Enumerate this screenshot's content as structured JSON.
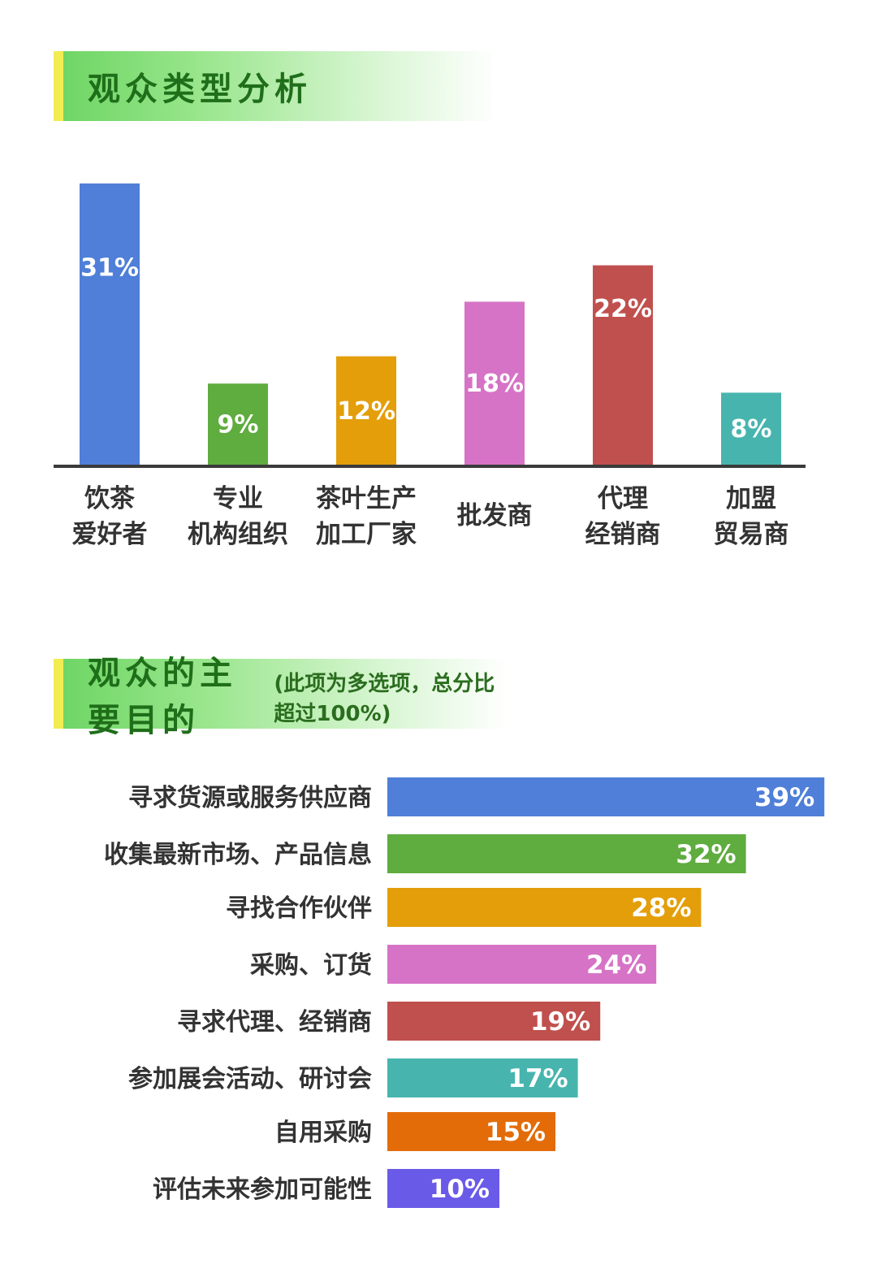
{
  "section1": {
    "title": "观众类型分析"
  },
  "section2": {
    "title": "观众的主要目的",
    "note": "(此项为多选项，总分比超过100%)"
  },
  "chart_data": [
    {
      "type": "bar",
      "orientation": "vertical",
      "categories": [
        [
          "饮茶",
          "爱好者"
        ],
        [
          "专业",
          "机构组织"
        ],
        [
          "茶叶生产",
          "加工厂家"
        ],
        [
          "批发商"
        ],
        [
          "代理",
          "经销商"
        ],
        [
          "加盟",
          "贸易商"
        ]
      ],
      "values": [
        31,
        9,
        12,
        18,
        22,
        8
      ],
      "value_labels": [
        "31%",
        "9%",
        "12%",
        "18%",
        "22%",
        "8%"
      ],
      "colors": [
        "#4f7fd8",
        "#5fac3f",
        "#e39e0a",
        "#d673c6",
        "#c0504d",
        "#47b5ae"
      ],
      "unit": "%"
    },
    {
      "type": "bar",
      "orientation": "horizontal",
      "categories": [
        "寻求货源或服务供应商",
        "收集最新市场、产品信息",
        "寻找合作伙伴",
        "采购、订货",
        "寻求代理、经销商",
        "参加展会活动、研讨会",
        "自用采购",
        "评估未来参加可能性"
      ],
      "values": [
        39,
        32,
        28,
        24,
        19,
        17,
        15,
        10
      ],
      "value_labels": [
        "39%",
        "32%",
        "28%",
        "24%",
        "19%",
        "17%",
        "15%",
        "10%"
      ],
      "colors": [
        "#4f7fd8",
        "#5fac3f",
        "#e39e0a",
        "#d673c6",
        "#c0504d",
        "#47b5ae",
        "#e36c09",
        "#6a5ae8"
      ],
      "unit": "%"
    }
  ]
}
